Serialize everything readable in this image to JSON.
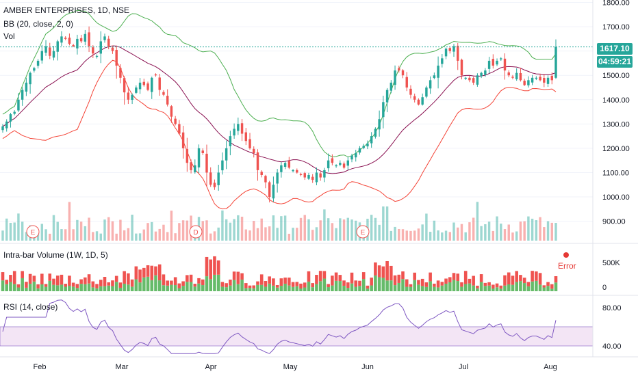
{
  "header": {
    "symbol_line": "AMBER ENTERPRISES, 1D, NSE",
    "bb_label": "BB (20, close, 2, 0)",
    "vol_label": "Vol"
  },
  "price_tags": {
    "last_price": "1617.10",
    "countdown": "04:59:21"
  },
  "panes": {
    "intrabar_label": "Intra-bar Volume (1W, 1D, 5)",
    "error_text": "Error",
    "rsi_label": "RSI (14, close)"
  },
  "events": [
    "E",
    "D",
    "E"
  ],
  "colors": {
    "up": "#26a69a",
    "down": "#ef5350",
    "bb_basis": "#880e4f",
    "bb_upper": "#4caf50",
    "bb_lower": "#f44336",
    "rsi": "#7e57c2",
    "rsi_band": "#f3e5f5",
    "last_price": "#26a69a",
    "ivol_up": "#66bb6a",
    "ivol_down": "#ef5350"
  },
  "chart_data": [
    {
      "type": "candlestick",
      "title": "AMBER ENTERPRISES, 1D, NSE",
      "x_ticks": [
        "Feb",
        "Mar",
        "Apr",
        "May",
        "Jun",
        "Jul",
        "Aug"
      ],
      "y_ticks": [
        "1800.00",
        "1700.00",
        "1600.00",
        "1500.00",
        "1400.00",
        "1300.00",
        "1200.00",
        "1100.00",
        "1000.00",
        "900.00"
      ],
      "ylim": [
        820,
        1810
      ],
      "close": [
        1290,
        1310,
        1340,
        1350,
        1400,
        1440,
        1470,
        1510,
        1530,
        1560,
        1600,
        1620,
        1580,
        1600,
        1640,
        1660,
        1650,
        1630,
        1620,
        1650,
        1640,
        1670,
        1620,
        1590,
        1580,
        1640,
        1660,
        1620,
        1600,
        1540,
        1490,
        1430,
        1400,
        1420,
        1450,
        1470,
        1460,
        1440,
        1490,
        1500,
        1440,
        1420,
        1380,
        1330,
        1300,
        1260,
        1200,
        1140,
        1110,
        1130,
        1200,
        1180,
        1100,
        1050,
        1040,
        1100,
        1150,
        1200,
        1250,
        1280,
        1300,
        1260,
        1230,
        1200,
        1180,
        1110,
        1090,
        1060,
        1000,
        1050,
        1100,
        1130,
        1140,
        1120,
        1110,
        1100,
        1090,
        1080,
        1090,
        1070,
        1100,
        1080,
        1110,
        1150,
        1140,
        1130,
        1140,
        1120,
        1150,
        1170,
        1180,
        1200,
        1210,
        1220,
        1250,
        1280,
        1320,
        1390,
        1440,
        1470,
        1520,
        1520,
        1500,
        1450,
        1420,
        1400,
        1380,
        1410,
        1450,
        1480,
        1500,
        1540,
        1570,
        1610,
        1600,
        1620,
        1560,
        1500,
        1490,
        1480,
        1470,
        1500,
        1510,
        1520,
        1560,
        1540,
        1560,
        1570,
        1520,
        1500,
        1490,
        1510,
        1480,
        1460,
        1480,
        1490,
        1490,
        1480,
        1470,
        1490,
        1480,
        1617.1
      ],
      "rsi": {
        "title": "RSI (14, close)",
        "y_ticks": [
          "80.00",
          "40.00"
        ],
        "bands": [
          40,
          60
        ],
        "ylim": [
          30,
          90
        ]
      },
      "volume_y_ticks": [
        "500K",
        "0"
      ]
    }
  ]
}
